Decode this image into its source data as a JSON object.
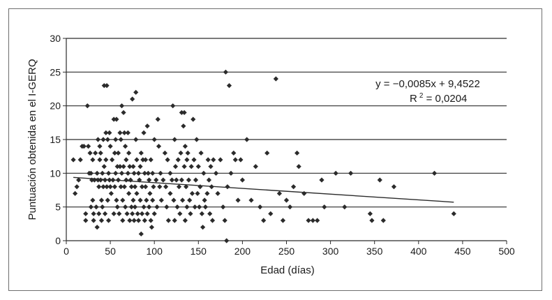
{
  "chart_data": {
    "type": "scatter",
    "title": "",
    "xlabel": "Edad (días)",
    "ylabel": "Puntuación obtenida en el I-GERQ",
    "xlim": [
      0,
      500
    ],
    "ylim": [
      0,
      30
    ],
    "x_ticks": [
      "0",
      "50",
      "100",
      "150",
      "200",
      "250",
      "300",
      "350",
      "400",
      "450",
      "500"
    ],
    "y_ticks": [
      "0",
      "5",
      "10",
      "15",
      "20",
      "25",
      "30"
    ],
    "grid": "horizontal",
    "legend": "none",
    "marker_color": "#2b2b2b",
    "line_color": "#2b2b2b",
    "annotation": {
      "equation": "y = −0,0085x + 9,4522",
      "r2_label": "R",
      "r2_sup": "2",
      "r2_value": " = 0,0204"
    },
    "trendline": {
      "slope": -0.0085,
      "intercept": 9.4522,
      "x_start": 8,
      "x_end": 440
    },
    "series": [
      {
        "points": [
          [
            8,
            12
          ],
          [
            10,
            7
          ],
          [
            12,
            8
          ],
          [
            14,
            9
          ],
          [
            16,
            12
          ],
          [
            18,
            14
          ],
          [
            20,
            14
          ],
          [
            22,
            4
          ],
          [
            22,
            3
          ],
          [
            24,
            20
          ],
          [
            25,
            14
          ],
          [
            26,
            10
          ],
          [
            27,
            13
          ],
          [
            28,
            10
          ],
          [
            28,
            5
          ],
          [
            29,
            9
          ],
          [
            30,
            12
          ],
          [
            30,
            6
          ],
          [
            31,
            4
          ],
          [
            31,
            3
          ],
          [
            32,
            9
          ],
          [
            33,
            13
          ],
          [
            34,
            5
          ],
          [
            35,
            10
          ],
          [
            35,
            2
          ],
          [
            36,
            15
          ],
          [
            36,
            9
          ],
          [
            37,
            8
          ],
          [
            37,
            4
          ],
          [
            38,
            14
          ],
          [
            38,
            12
          ],
          [
            39,
            13
          ],
          [
            39,
            9
          ],
          [
            40,
            6
          ],
          [
            40,
            3
          ],
          [
            41,
            10
          ],
          [
            41,
            5
          ],
          [
            42,
            15
          ],
          [
            42,
            8
          ],
          [
            43,
            23
          ],
          [
            43,
            11
          ],
          [
            44,
            9
          ],
          [
            44,
            4
          ],
          [
            45,
            16
          ],
          [
            45,
            12
          ],
          [
            46,
            23
          ],
          [
            46,
            8
          ],
          [
            47,
            15
          ],
          [
            47,
            6
          ],
          [
            48,
            10
          ],
          [
            48,
            3
          ],
          [
            49,
            16
          ],
          [
            49,
            9
          ],
          [
            50,
            14
          ],
          [
            50,
            8
          ],
          [
            51,
            7
          ],
          [
            52,
            12
          ],
          [
            53,
            9
          ],
          [
            54,
            18
          ],
          [
            54,
            4
          ],
          [
            55,
            13
          ],
          [
            55,
            8
          ],
          [
            56,
            15
          ],
          [
            56,
            10
          ],
          [
            57,
            18
          ],
          [
            57,
            6
          ],
          [
            58,
            11
          ],
          [
            58,
            5
          ],
          [
            59,
            13
          ],
          [
            59,
            9
          ],
          [
            60,
            4
          ],
          [
            61,
            16
          ],
          [
            61,
            11
          ],
          [
            62,
            15
          ],
          [
            62,
            8
          ],
          [
            63,
            20
          ],
          [
            63,
            10
          ],
          [
            64,
            6
          ],
          [
            64,
            3
          ],
          [
            65,
            19
          ],
          [
            65,
            11
          ],
          [
            66,
            16
          ],
          [
            66,
            8
          ],
          [
            67,
            14
          ],
          [
            67,
            5
          ],
          [
            68,
            12
          ],
          [
            68,
            9
          ],
          [
            69,
            4
          ],
          [
            70,
            16
          ],
          [
            70,
            10
          ],
          [
            71,
            13
          ],
          [
            71,
            7
          ],
          [
            72,
            11
          ],
          [
            72,
            3
          ],
          [
            73,
            9
          ],
          [
            74,
            8
          ],
          [
            74,
            5
          ],
          [
            75,
            21
          ],
          [
            75,
            4
          ],
          [
            76,
            11
          ],
          [
            76,
            6
          ],
          [
            77,
            10
          ],
          [
            77,
            3
          ],
          [
            78,
            8
          ],
          [
            78,
            5
          ],
          [
            79,
            15
          ],
          [
            79,
            22
          ],
          [
            80,
            12
          ],
          [
            80,
            7
          ],
          [
            81,
            4
          ],
          [
            82,
            10
          ],
          [
            82,
            3
          ],
          [
            83,
            9
          ],
          [
            84,
            11
          ],
          [
            84,
            6
          ],
          [
            85,
            13
          ],
          [
            85,
            1
          ],
          [
            86,
            8
          ],
          [
            86,
            4
          ],
          [
            87,
            12
          ],
          [
            88,
            16
          ],
          [
            88,
            5
          ],
          [
            89,
            10
          ],
          [
            89,
            3
          ],
          [
            90,
            12
          ],
          [
            90,
            8
          ],
          [
            91,
            6
          ],
          [
            92,
            17
          ],
          [
            92,
            4
          ],
          [
            93,
            10
          ],
          [
            94,
            9
          ],
          [
            94,
            5
          ],
          [
            95,
            7
          ],
          [
            96,
            12
          ],
          [
            96,
            3
          ],
          [
            97,
            2
          ],
          [
            98,
            10
          ],
          [
            98,
            6
          ],
          [
            99,
            8
          ],
          [
            100,
            15
          ],
          [
            100,
            4
          ],
          [
            102,
            9
          ],
          [
            103,
            5
          ],
          [
            104,
            18
          ],
          [
            105,
            14
          ],
          [
            106,
            8
          ],
          [
            107,
            10
          ],
          [
            108,
            6
          ],
          [
            110,
            9
          ],
          [
            112,
            13
          ],
          [
            113,
            8
          ],
          [
            114,
            5
          ],
          [
            115,
            12
          ],
          [
            116,
            3
          ],
          [
            118,
            10
          ],
          [
            118,
            7
          ],
          [
            120,
            9
          ],
          [
            121,
            20
          ],
          [
            122,
            6
          ],
          [
            123,
            15
          ],
          [
            123,
            3
          ],
          [
            124,
            11
          ],
          [
            125,
            9
          ],
          [
            126,
            5
          ],
          [
            127,
            12
          ],
          [
            128,
            8
          ],
          [
            129,
            4
          ],
          [
            130,
            13
          ],
          [
            131,
            19
          ],
          [
            131,
            9
          ],
          [
            132,
            6
          ],
          [
            133,
            17
          ],
          [
            134,
            19
          ],
          [
            134,
            11
          ],
          [
            135,
            14
          ],
          [
            135,
            3
          ],
          [
            136,
            8
          ],
          [
            137,
            12
          ],
          [
            137,
            5
          ],
          [
            138,
            13
          ],
          [
            139,
            9
          ],
          [
            140,
            6
          ],
          [
            141,
            4
          ],
          [
            142,
            11
          ],
          [
            143,
            7
          ],
          [
            144,
            18
          ],
          [
            145,
            12
          ],
          [
            146,
            5
          ],
          [
            147,
            9
          ],
          [
            148,
            15
          ],
          [
            149,
            7
          ],
          [
            150,
            11
          ],
          [
            151,
            5
          ],
          [
            152,
            8
          ],
          [
            153,
            13
          ],
          [
            154,
            4
          ],
          [
            155,
            2
          ],
          [
            156,
            10
          ],
          [
            157,
            6
          ],
          [
            158,
            5
          ],
          [
            160,
            7
          ],
          [
            161,
            12
          ],
          [
            162,
            9
          ],
          [
            163,
            4
          ],
          [
            164,
            11
          ],
          [
            165,
            8
          ],
          [
            166,
            3
          ],
          [
            167,
            12
          ],
          [
            170,
            10
          ],
          [
            172,
            7
          ],
          [
            175,
            12
          ],
          [
            178,
            5
          ],
          [
            180,
            3
          ],
          [
            181,
            25
          ],
          [
            182,
            0
          ],
          [
            183,
            8
          ],
          [
            185,
            23
          ],
          [
            187,
            10
          ],
          [
            190,
            13
          ],
          [
            192,
            12
          ],
          [
            195,
            6
          ],
          [
            198,
            12
          ],
          [
            200,
            9
          ],
          [
            205,
            15
          ],
          [
            210,
            6
          ],
          [
            215,
            11
          ],
          [
            220,
            5
          ],
          [
            224,
            3
          ],
          [
            228,
            13
          ],
          [
            232,
            4
          ],
          [
            238,
            24
          ],
          [
            242,
            7
          ],
          [
            246,
            3
          ],
          [
            250,
            6
          ],
          [
            254,
            5
          ],
          [
            258,
            8
          ],
          [
            262,
            13
          ],
          [
            264,
            11
          ],
          [
            270,
            7
          ],
          [
            275,
            3
          ],
          [
            280,
            3
          ],
          [
            285,
            3
          ],
          [
            290,
            9
          ],
          [
            293,
            5
          ],
          [
            306,
            10
          ],
          [
            316,
            5
          ],
          [
            323,
            10
          ],
          [
            345,
            4
          ],
          [
            347,
            3
          ],
          [
            356,
            9
          ],
          [
            360,
            3
          ],
          [
            372,
            8
          ],
          [
            418,
            10
          ],
          [
            440,
            4
          ]
        ]
      }
    ]
  }
}
